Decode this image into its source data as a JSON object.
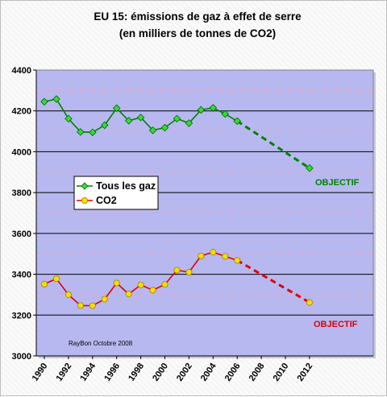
{
  "chart_data": {
    "type": "line",
    "title_line1": "EU 15: émissions de gaz à effet de serre",
    "title_line2": "(en milliers de tonnes de CO2)",
    "ylim": [
      3000,
      4400
    ],
    "yticks": [
      3000,
      3200,
      3400,
      3600,
      3800,
      4000,
      4200,
      4400
    ],
    "xlim": [
      1990,
      2012
    ],
    "xticks": [
      1990,
      1992,
      1994,
      1996,
      1998,
      2000,
      2002,
      2004,
      2006,
      2008,
      2010,
      2012
    ],
    "grid": "horizontal dotted",
    "legend_placement": "middle-left",
    "series": [
      {
        "name": "Tous les gaz",
        "color": "#008000",
        "marker": "diamond",
        "x": [
          1990,
          1991,
          1992,
          1993,
          1994,
          1995,
          1996,
          1997,
          1998,
          1999,
          2000,
          2001,
          2002,
          2003,
          2004,
          2005,
          2006
        ],
        "values": [
          4245,
          4258,
          4162,
          4097,
          4095,
          4130,
          4213,
          4152,
          4168,
          4105,
          4118,
          4162,
          4140,
          4205,
          4215,
          4185,
          4150
        ],
        "objective": {
          "x": 2012,
          "value": 3920,
          "label": "OBJECTIF",
          "label_color": "#008000"
        }
      },
      {
        "name": "CO2",
        "color": "#e00000",
        "marker": "circle",
        "marker_fill": "#f2e000",
        "x": [
          1990,
          1991,
          1992,
          1993,
          1994,
          1995,
          1996,
          1997,
          1998,
          1999,
          2000,
          2001,
          2002,
          2003,
          2004,
          2005,
          2006
        ],
        "values": [
          3352,
          3378,
          3300,
          3247,
          3246,
          3278,
          3357,
          3303,
          3348,
          3322,
          3350,
          3420,
          3410,
          3490,
          3508,
          3488,
          3468
        ],
        "objective": {
          "x": 2012,
          "value": 3262,
          "label": "OBJECTIF",
          "label_color": "#e00000"
        }
      }
    ],
    "annotation": "RayBon Octobre 2008",
    "plot_background": "#b8b8f0"
  }
}
